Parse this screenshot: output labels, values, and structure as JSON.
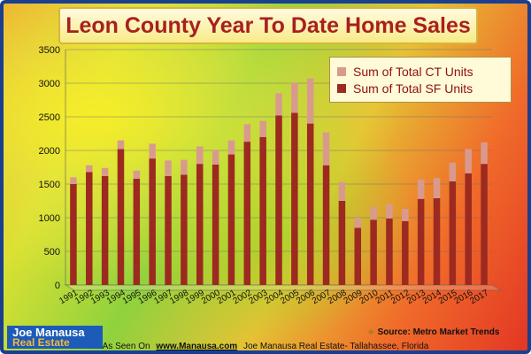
{
  "title": "Leon County Year To Date Home Sales",
  "colors": {
    "sf": "#9c2a20",
    "ct": "#d99a8e"
  },
  "legend": {
    "ct": "Sum of Total CT Units",
    "sf": "Sum of Total SF Units"
  },
  "chart_data": {
    "type": "bar",
    "stacked": true,
    "categories": [
      "1991",
      "1992",
      "1993",
      "1994",
      "1995",
      "1996",
      "1997",
      "1998",
      "1999",
      "2000",
      "2001",
      "2002",
      "2003",
      "2004",
      "2005",
      "2006",
      "2007",
      "2008",
      "2009",
      "2010",
      "2011",
      "2012",
      "2013",
      "2014",
      "2015",
      "2016",
      "2017"
    ],
    "series": [
      {
        "name": "Sum of Total SF Units",
        "values": [
          1500,
          1680,
          1620,
          2020,
          1580,
          1880,
          1620,
          1640,
          1800,
          1790,
          1940,
          2130,
          2200,
          2520,
          2560,
          2400,
          1780,
          1250,
          850,
          970,
          990,
          950,
          1280,
          1290,
          1540,
          1660,
          1800
        ]
      },
      {
        "name": "Sum of Total CT Units",
        "values": [
          100,
          100,
          120,
          130,
          120,
          220,
          230,
          220,
          260,
          220,
          210,
          260,
          240,
          330,
          450,
          670,
          490,
          280,
          150,
          190,
          210,
          180,
          290,
          300,
          280,
          360,
          320
        ]
      }
    ],
    "ylim": [
      0,
      3500
    ],
    "yticks": [
      0,
      500,
      1000,
      1500,
      2000,
      2500,
      3000,
      3500
    ],
    "grid": true,
    "legend_position": "top-right"
  },
  "logo": {
    "line1": "Joe Manausa",
    "line2": "Real Estate"
  },
  "source": {
    "symbol": "♣",
    "text": "Source: Metro Market Trends"
  },
  "footer": {
    "prefix": "As Seen On",
    "url": "www.Manausa.com",
    "suffix": "Joe Manausa Real Estate- Tallahassee, Florida"
  }
}
